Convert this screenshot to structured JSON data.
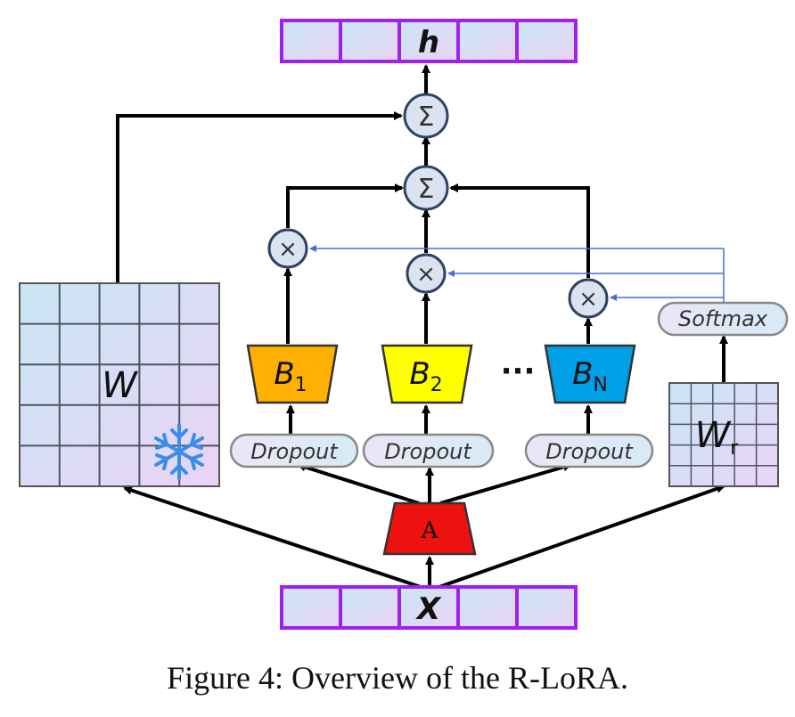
{
  "output_vector": {
    "label": "h"
  },
  "input_vector": {
    "label": "X"
  },
  "frozen_weight": {
    "label": "W",
    "icon": "snowflake-icon"
  },
  "router_weight": {
    "label": "W",
    "label_sub": "r"
  },
  "softmax": {
    "label": "Softmax"
  },
  "shared_A": {
    "label": "A"
  },
  "dropouts": [
    {
      "label": "Dropout"
    },
    {
      "label": "Dropout"
    },
    {
      "label": "Dropout"
    }
  ],
  "experts": [
    {
      "label": "B",
      "sub": "1",
      "color": "#ffb000"
    },
    {
      "label": "B",
      "sub": "2",
      "color": "#ffff00"
    },
    {
      "label": "B",
      "sub": "N",
      "color": "#00a0e8"
    }
  ],
  "ellipsis": "···",
  "sum_symbol": "Σ",
  "mul_symbol": "×",
  "colors": {
    "vector_border": "#a020f0",
    "node_fill": "#dbe3f0",
    "node_stroke": "#2f4360",
    "A_fill": "#ee1111",
    "router_line": "#4a6fd0"
  },
  "caption": "Figure 4: Overview of the R-LoRA."
}
